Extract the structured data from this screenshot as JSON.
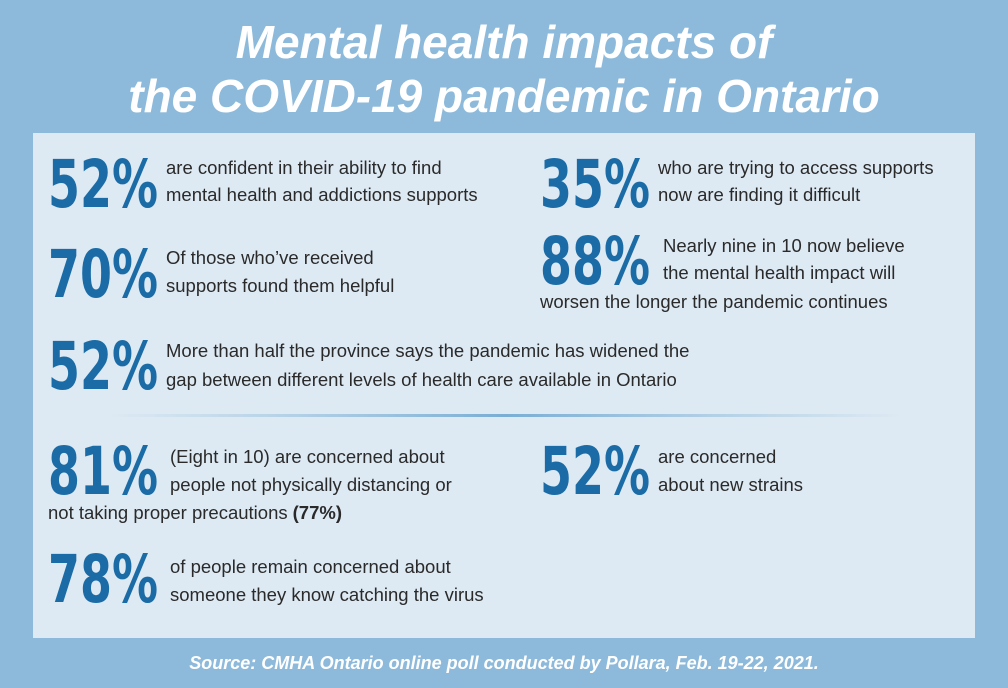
{
  "title": {
    "lines": [
      "Mental health impacts of",
      "the COVID-19 pandemic in Ontario"
    ]
  },
  "stats": [
    {
      "figure": "52%",
      "lines": [
        "are confident in their ability to find",
        "mental health and addictions supports"
      ]
    },
    {
      "figure": "35%",
      "lines": [
        "who are trying to access supports",
        "now are finding it difficult"
      ]
    },
    {
      "figure": "70%",
      "lines": [
        "Of those who’ve received",
        "supports found them helpful"
      ]
    },
    {
      "figure": "88%",
      "lines": [
        "Nearly nine in 10 now believe",
        "the mental health impact will",
        "worsen the longer the pandemic continues"
      ]
    },
    {
      "figure": "52%",
      "lines": [
        "More than half the province says the pandemic has widened the",
        "gap between different levels of health care available in Ontario"
      ]
    },
    {
      "figure": "81%",
      "lines": [
        "(Eight in 10) are concerned about",
        "people not physically distancing or",
        "not taking proper precautions"
      ],
      "emphasis": "(77%)"
    },
    {
      "figure": "52%",
      "lines": [
        "are concerned",
        "about new strains"
      ]
    },
    {
      "figure": "78%",
      "lines": [
        "of people remain concerned about",
        "someone they know catching the virus"
      ]
    }
  ],
  "source": "Source: CMHA Ontario online poll conducted by Pollara, Feb. 19-22, 2021."
}
